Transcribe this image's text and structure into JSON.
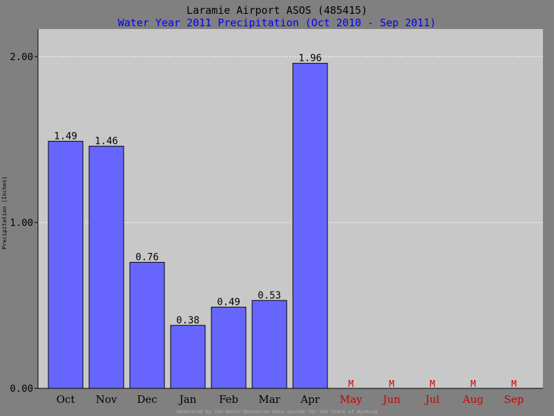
{
  "colors": {
    "background": "#808080",
    "plot_area": "#c8c8c8",
    "bar": "#6666ff",
    "title": "#000000",
    "subtitle": "#0000ff",
    "missing": "#cc0000",
    "grid": "#ffffff"
  },
  "chart_data": {
    "type": "bar",
    "title": "Laramie Airport ASOS (485415)",
    "subtitle": "Water Year 2011 Precipitation (Oct 2010 - Sep 2011)",
    "xlabel": "",
    "ylabel": "Precipitation (Inches)",
    "ylim": [
      0,
      2.0
    ],
    "yticks": [
      "0.00",
      "1.00",
      "2.00"
    ],
    "grid": true,
    "categories": [
      "Oct",
      "Nov",
      "Dec",
      "Jan",
      "Feb",
      "Mar",
      "Apr",
      "May",
      "Jun",
      "Jul",
      "Aug",
      "Sep"
    ],
    "values": [
      1.49,
      1.46,
      0.76,
      0.38,
      0.49,
      0.53,
      1.96,
      null,
      null,
      null,
      null,
      null
    ],
    "data_labels": [
      "1.49",
      "1.46",
      "0.76",
      "0.38",
      "0.49",
      "0.53",
      "1.96",
      "M",
      "M",
      "M",
      "M",
      "M"
    ],
    "footer": "Generated by the Water Resources Data System for the State of Wyoming"
  }
}
